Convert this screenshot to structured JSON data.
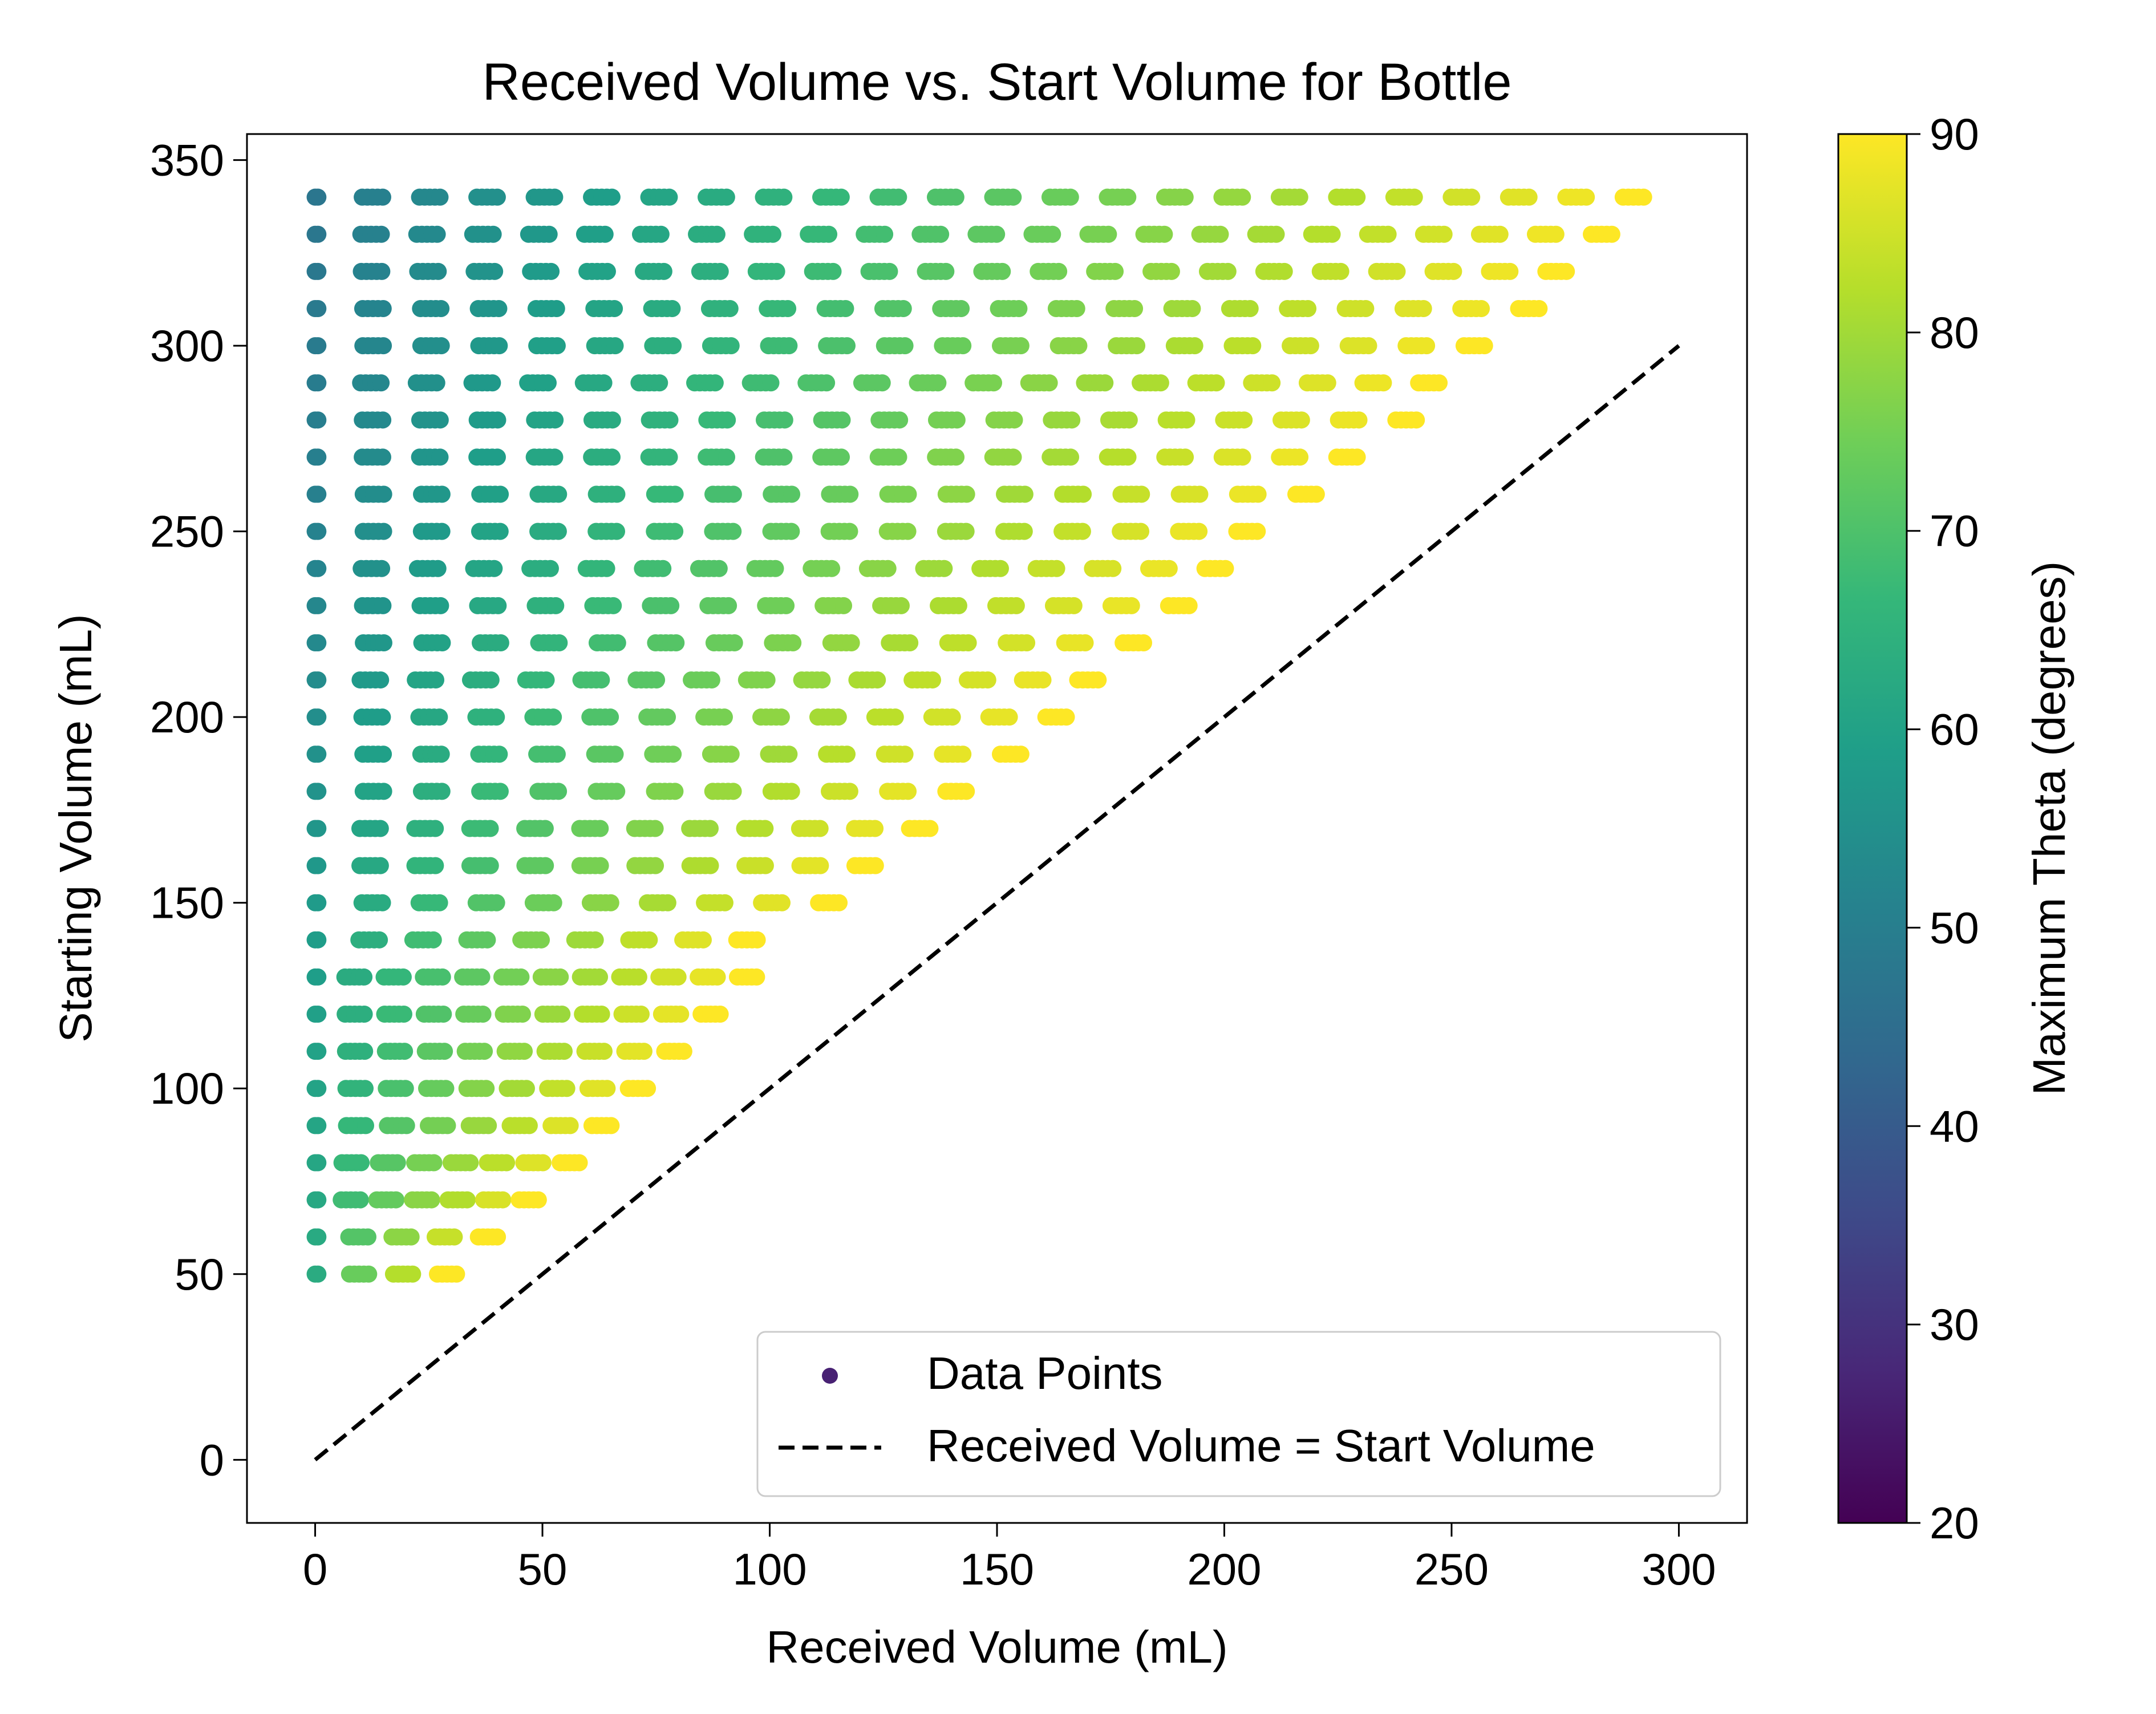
{
  "chart_data": {
    "type": "scatter",
    "title": "Received Volume vs. Start Volume for Bottle",
    "xlabel": "Received Volume (mL)",
    "ylabel": "Starting Volume (mL)",
    "xlim": [
      -15,
      315
    ],
    "ylim": [
      -17,
      357
    ],
    "xticks": [
      0,
      50,
      100,
      150,
      200,
      250,
      300
    ],
    "yticks": [
      0,
      50,
      100,
      150,
      200,
      250,
      300,
      350
    ],
    "grid": false,
    "legend_position": "lower-right",
    "colorbar": {
      "label": "Maximum Theta (degrees)",
      "range": [
        20,
        90
      ],
      "ticks": [
        20,
        30,
        40,
        50,
        60,
        70,
        80,
        90
      ],
      "colormap": "viridis"
    },
    "series": [
      {
        "name": "Data Points",
        "kind": "scatter",
        "color_encoding": "Maximum Theta (degrees)",
        "description": "Start volumes 50 to 340 mL in 10 mL steps; for each start volume, received volumes from 0 up to roughly (start - 50) mL, sampled in clusters; color increases from ~48-60 deg at 0 mL toward ~90 deg at the maximum received volume",
        "start_volumes": [
          50,
          60,
          70,
          80,
          90,
          100,
          110,
          120,
          130,
          140,
          150,
          160,
          170,
          180,
          190,
          200,
          210,
          220,
          230,
          240,
          250,
          260,
          270,
          280,
          290,
          300,
          310,
          320,
          330,
          340
        ],
        "max_received_volumes": [
          29,
          38,
          47,
          56,
          63,
          71,
          79,
          87,
          95,
          95,
          113,
          121,
          133,
          141,
          153,
          163,
          170,
          180,
          190,
          198,
          205,
          218,
          227,
          240,
          245,
          255,
          267,
          273,
          283,
          290
        ]
      },
      {
        "name": "Received Volume = Start Volume",
        "kind": "line",
        "style": "dashed",
        "color": "#000000",
        "x": [
          0,
          300
        ],
        "y": [
          0,
          300
        ]
      }
    ]
  }
}
